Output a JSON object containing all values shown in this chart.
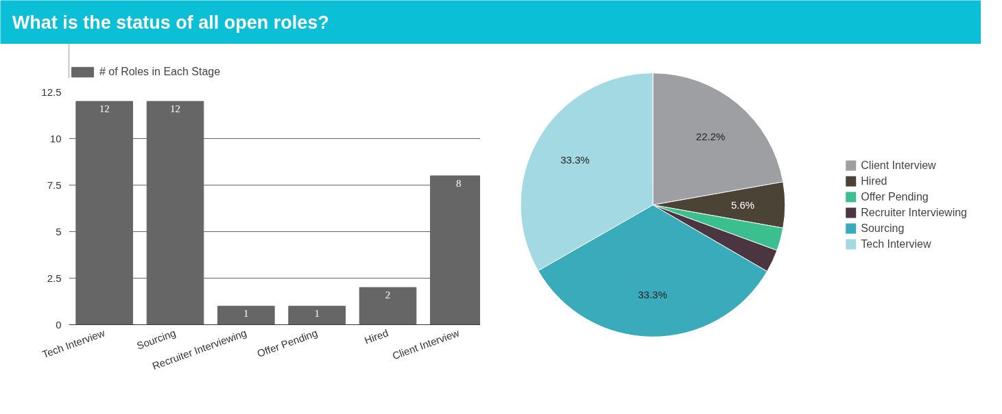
{
  "chart_data": [
    {
      "type": "bar",
      "title": "What is the status of all open roles?",
      "categories": [
        "Tech Interview",
        "Sourcing",
        "Recruiter Interviewing",
        "Offer Pending",
        "Hired",
        "Client Interview"
      ],
      "series": [
        {
          "name": "# of Roles in Each Stage",
          "color": "#666666",
          "values": [
            12,
            12,
            1,
            1,
            2,
            8
          ]
        }
      ],
      "ylim": [
        0,
        12.5
      ],
      "yticks": [
        0,
        2.5,
        5,
        7.5,
        10,
        12.5
      ],
      "grid": "y",
      "legend": "top left",
      "data_labels": true
    },
    {
      "type": "pie",
      "categories": [
        "Client Interview",
        "Hired",
        "Offer Pending",
        "Recruiter Interviewing",
        "Sourcing",
        "Tech Interview"
      ],
      "values": [
        22.2,
        5.6,
        2.8,
        2.8,
        33.3,
        33.3
      ],
      "colors": [
        "#9e9fa3",
        "#4a4336",
        "#3bbf8e",
        "#4a3540",
        "#3aabba",
        "#a3d9e2"
      ],
      "value_labels": [
        "22.2%",
        "5.6%",
        null,
        null,
        "33.3%",
        "33.3%"
      ],
      "legend": "right"
    }
  ]
}
